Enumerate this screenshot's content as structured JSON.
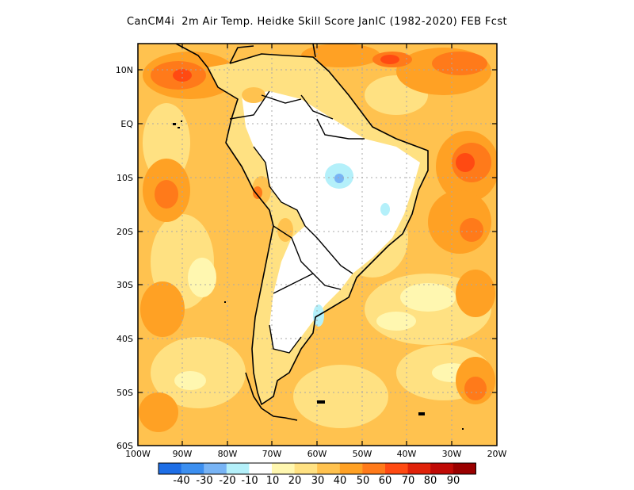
{
  "title": "CanCM4i  2m Air Temp. Heidke Skill Score JanIC (1982-2020) FEB Fcst",
  "lat_labels": [
    "10N",
    "EQ",
    "10S",
    "20S",
    "30S",
    "40S",
    "50S",
    "60S"
  ],
  "lon_labels": [
    "100W",
    "90W",
    "80W",
    "70W",
    "60W",
    "50W",
    "40W",
    "30W",
    "20W"
  ],
  "colorbar": {
    "colors": [
      "#1e6ee6",
      "#3c8ff0",
      "#78b4f5",
      "#b4f0fa",
      "#ffffff",
      "#fff7b0",
      "#ffe182",
      "#ffc24f",
      "#ffa124",
      "#ff7a1a",
      "#ff4a12",
      "#e0220a",
      "#c00a06",
      "#9a0000"
    ],
    "labels": [
      "-40",
      "-30",
      "-20",
      "-10",
      "10",
      "20",
      "30",
      "40",
      "50",
      "60",
      "70",
      "80",
      "90"
    ]
  },
  "map_colors": {
    "ocean_base": "#ffc24f",
    "coast": "#000000",
    "grid": "#a8a8a8"
  }
}
